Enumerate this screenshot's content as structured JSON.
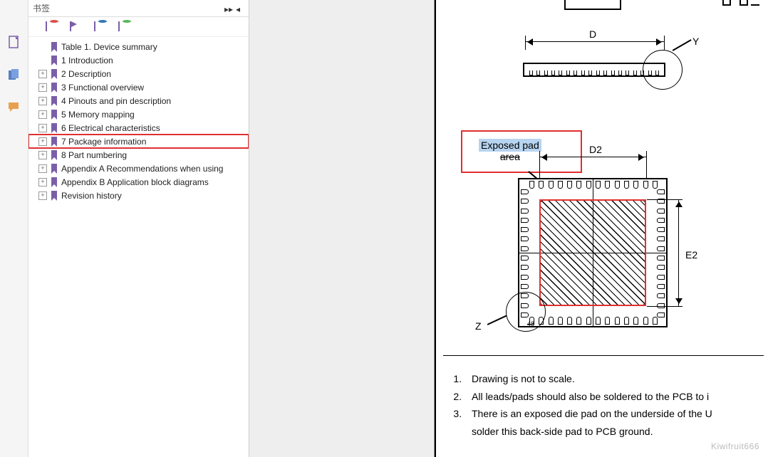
{
  "sidebar": {
    "title": "书签",
    "nav_prev": "▸▸",
    "nav_next": "◂",
    "items": [
      {
        "label": "Table 1. Device summary",
        "expandable": false
      },
      {
        "label": "1 Introduction",
        "expandable": false
      },
      {
        "label": "2 Description",
        "expandable": true
      },
      {
        "label": "3 Functional overview",
        "expandable": true
      },
      {
        "label": "4 Pinouts and pin description",
        "expandable": true
      },
      {
        "label": "5 Memory mapping",
        "expandable": true
      },
      {
        "label": "6 Electrical characteristics",
        "expandable": true
      },
      {
        "label": "7 Package information",
        "expandable": true,
        "highlighted": true
      },
      {
        "label": "8 Part numbering",
        "expandable": true
      },
      {
        "label": "Appendix A Recommendations when using",
        "expandable": true
      },
      {
        "label": "Appendix B Application block diagrams",
        "expandable": true
      },
      {
        "label": "Revision history",
        "expandable": true
      }
    ]
  },
  "drawing": {
    "dim_D": "D",
    "dim_D2": "D2",
    "dim_E2": "E2",
    "detail_Y": "Y",
    "detail_Z": "Z",
    "pin48": "48",
    "exposed_line1": "Exposed pad",
    "exposed_line2": "area",
    "side_pin_count": 18,
    "qfn_pins_per_side": 14,
    "colors": {
      "annotation_red": "#e03030",
      "highlight_blue": "#b7d4f0",
      "bookmark_purple": "#7a5fa8",
      "line": "#000000"
    }
  },
  "notes": {
    "n1": "Drawing is not to scale.",
    "n2": "All leads/pads should also be soldered to the PCB to i",
    "n3": "There is an exposed die pad on the underside of the U",
    "n3b": "solder this back-side pad to PCB ground."
  },
  "watermark": "Kiwifruit666"
}
